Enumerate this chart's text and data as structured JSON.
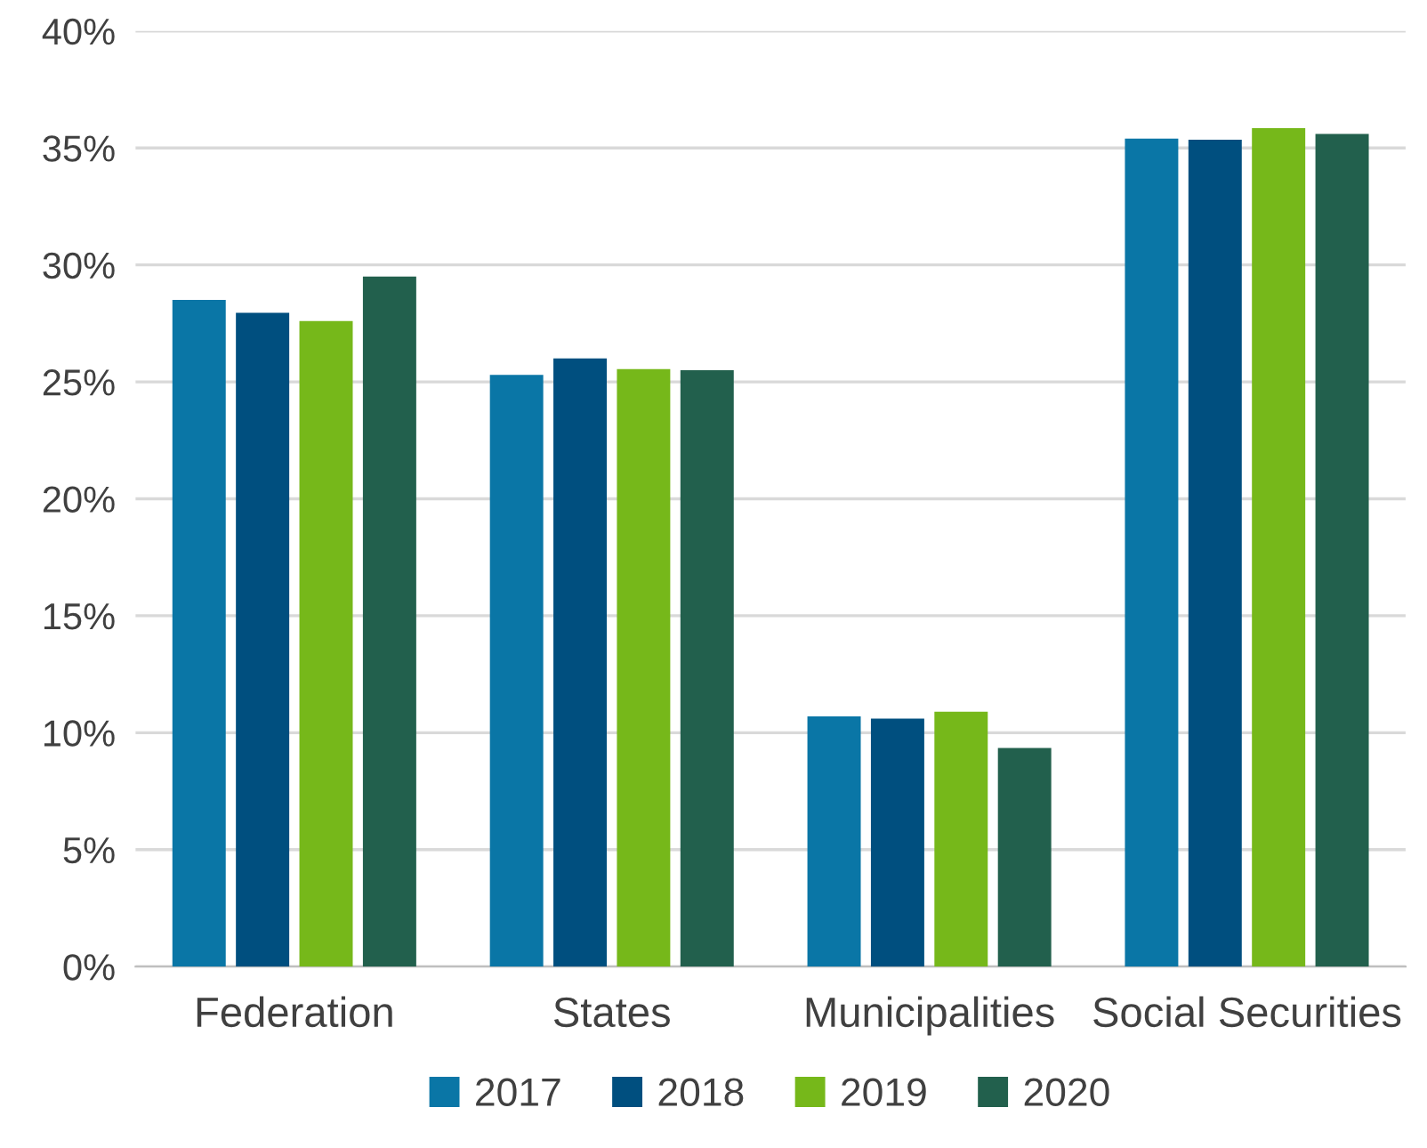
{
  "chart_data": {
    "type": "bar",
    "categories": [
      "Federation",
      "States",
      "Municipalities",
      "Social Securities"
    ],
    "series": [
      {
        "name": "2017",
        "color": "#0a76a6",
        "values": [
          28.5,
          25.3,
          10.7,
          35.4
        ]
      },
      {
        "name": "2018",
        "color": "#004f7f",
        "values": [
          27.95,
          26.0,
          10.6,
          35.35
        ]
      },
      {
        "name": "2019",
        "color": "#76b81a",
        "values": [
          27.6,
          25.55,
          10.9,
          35.85
        ]
      },
      {
        "name": "2020",
        "color": "#22604d",
        "values": [
          29.5,
          25.5,
          9.35,
          35.6
        ]
      }
    ],
    "ylim": [
      0,
      40
    ],
    "yticks": [
      {
        "value": 0,
        "label": "0%"
      },
      {
        "value": 5,
        "label": "5%"
      },
      {
        "value": 10,
        "label": "10%"
      },
      {
        "value": 15,
        "label": "15%"
      },
      {
        "value": 20,
        "label": "20%"
      },
      {
        "value": 25,
        "label": "25%"
      },
      {
        "value": 30,
        "label": "30%"
      },
      {
        "value": 35,
        "label": "35%"
      },
      {
        "value": 40,
        "label": "40%"
      }
    ],
    "grid": "y",
    "legend": "bottom"
  }
}
